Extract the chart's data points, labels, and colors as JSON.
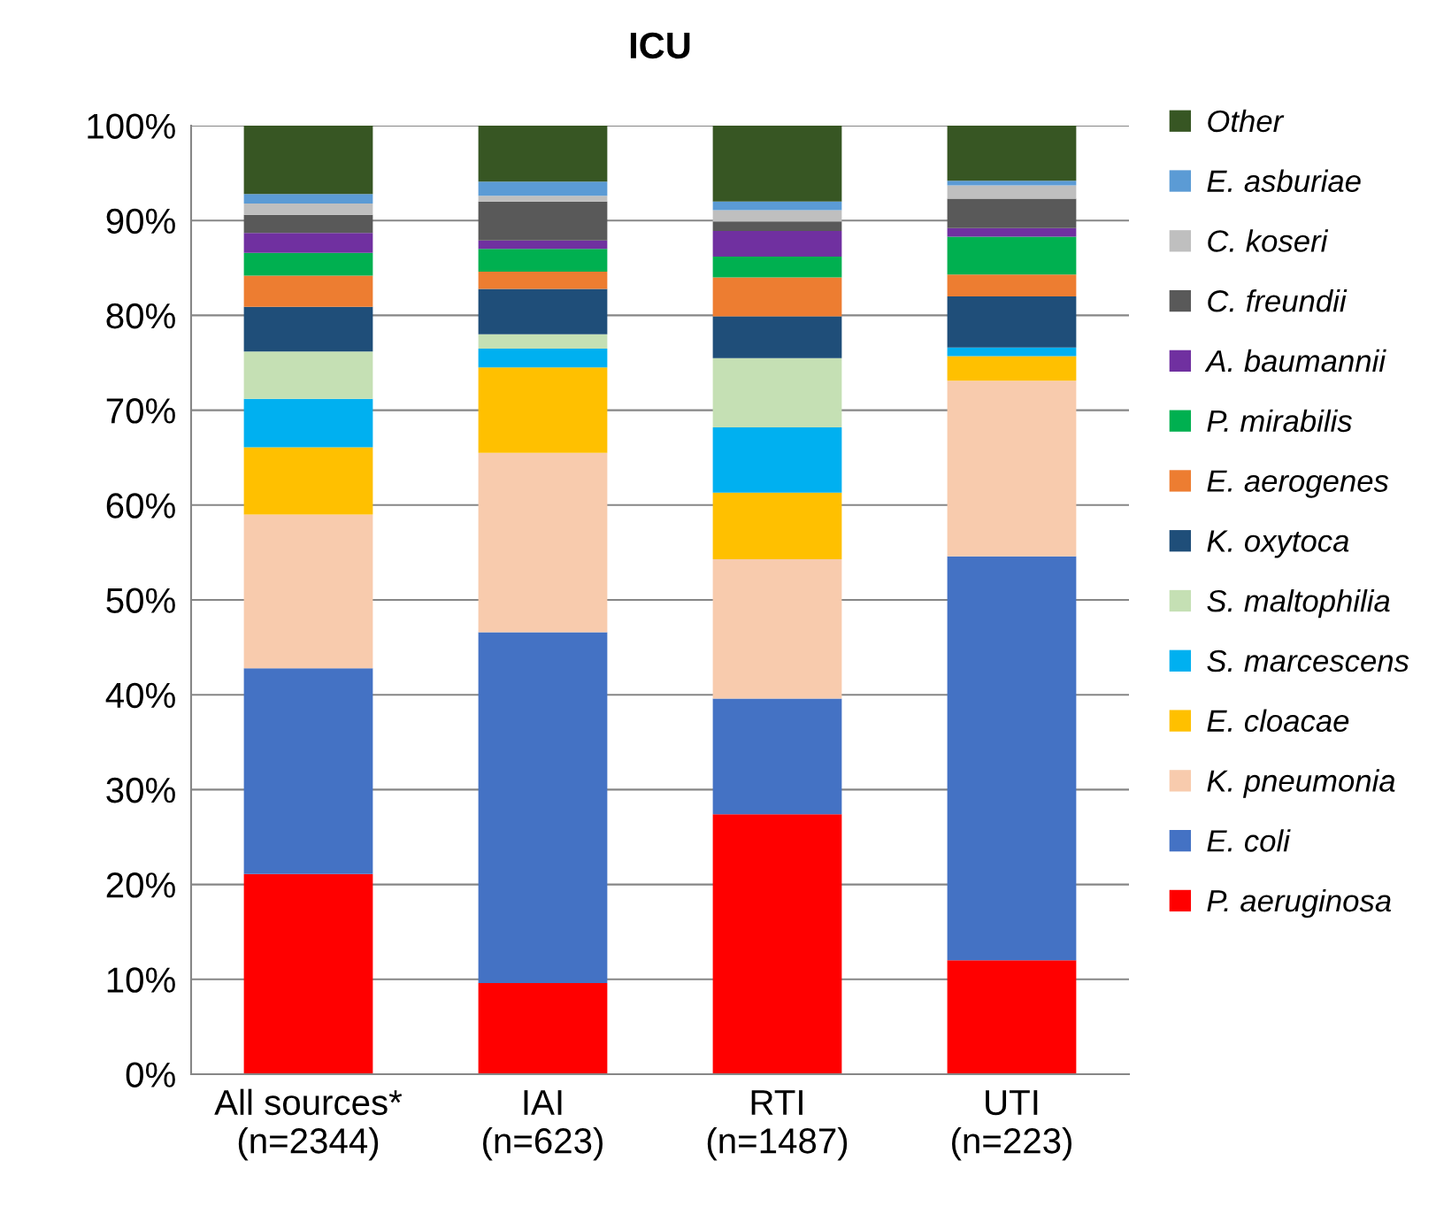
{
  "chart_data": {
    "type": "bar",
    "title": "ICU",
    "stacked": true,
    "categories": [
      "All sources*\n(n=2344)",
      "IAI\n(n=623)",
      "RTI\n(n=1487)",
      "UTI\n(n=223)"
    ],
    "ylim": [
      0,
      100
    ],
    "yticks": [
      {
        "value": 0,
        "label": "0%"
      },
      {
        "value": 10,
        "label": "10%"
      },
      {
        "value": 20,
        "label": "20%"
      },
      {
        "value": 30,
        "label": "30%"
      },
      {
        "value": 40,
        "label": "40%"
      },
      {
        "value": 50,
        "label": "50%"
      },
      {
        "value": 60,
        "label": "60%"
      },
      {
        "value": 70,
        "label": "70%"
      },
      {
        "value": 80,
        "label": "80%"
      },
      {
        "value": 90,
        "label": "90%"
      },
      {
        "value": 100,
        "label": "100%"
      }
    ],
    "grid": "y",
    "legend": "right",
    "series": [
      {
        "name": "P. aeruginosa",
        "color": "#ff0000",
        "values": [
          21.1,
          9.6,
          27.4,
          12.0
        ]
      },
      {
        "name": "E. coli",
        "color": "#4472c4",
        "values": [
          21.7,
          37.0,
          12.2,
          42.6
        ]
      },
      {
        "name": "K. pneumonia",
        "color": "#f8cbad",
        "values": [
          16.2,
          18.9,
          14.7,
          18.5
        ]
      },
      {
        "name": "E. cloacae",
        "color": "#ffc000",
        "values": [
          7.1,
          9.0,
          7.0,
          2.6
        ]
      },
      {
        "name": "S. marcescens",
        "color": "#00b0f0",
        "values": [
          5.1,
          2.0,
          6.9,
          0.9
        ]
      },
      {
        "name": "S. maltophilia",
        "color": "#c5e0b4",
        "values": [
          5.0,
          1.5,
          7.3,
          0
        ]
      },
      {
        "name": "K. oxytoca",
        "color": "#1f4e79",
        "values": [
          4.7,
          4.8,
          4.4,
          5.4
        ]
      },
      {
        "name": "E. aerogenes",
        "color": "#ed7d31",
        "values": [
          3.3,
          1.8,
          4.1,
          2.3
        ]
      },
      {
        "name": "P. mirabilis",
        "color": "#00b050",
        "values": [
          2.4,
          2.4,
          2.2,
          4.0
        ]
      },
      {
        "name": "A. baumannii",
        "color": "#7030a0",
        "values": [
          2.1,
          0.9,
          2.7,
          0.9
        ]
      },
      {
        "name": "C. freundii",
        "color": "#595959",
        "values": [
          1.9,
          4.1,
          1.0,
          3.1
        ]
      },
      {
        "name": "C. koseri",
        "color": "#bfbfbf",
        "values": [
          1.2,
          0.6,
          1.2,
          1.4
        ]
      },
      {
        "name": "E. asburiae",
        "color": "#5b9bd5",
        "values": [
          1.0,
          1.5,
          0.9,
          0.5
        ]
      },
      {
        "name": "Other",
        "color": "#375623",
        "values": [
          7.2,
          5.9,
          8.0,
          5.8
        ]
      }
    ]
  }
}
